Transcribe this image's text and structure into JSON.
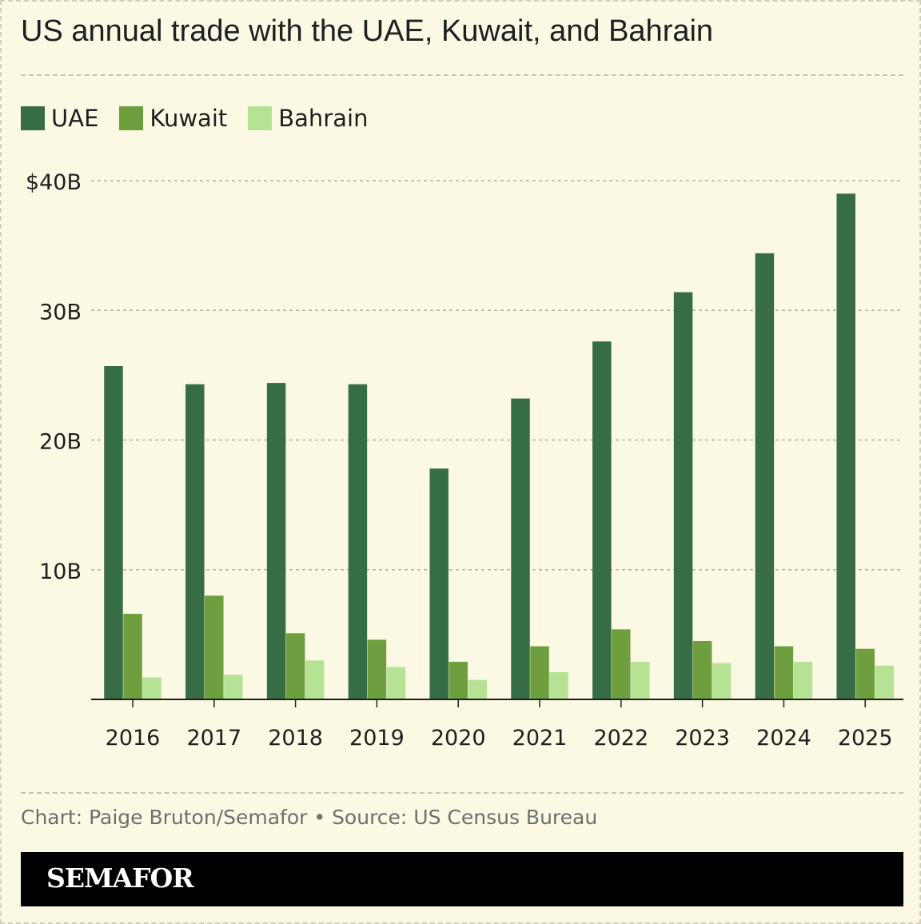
{
  "title": "US annual trade with the UAE, Kuwait, and Bahrain",
  "legend": [
    {
      "label": "UAE",
      "color": "#376d44"
    },
    {
      "label": "Kuwait",
      "color": "#6f9e3e"
    },
    {
      "label": "Bahrain",
      "color": "#b5e393"
    }
  ],
  "footnote": "Chart: Paige Bruton/Semafor • Source: US Census Bureau",
  "brand": "SEMAFOR",
  "chart_data": {
    "type": "bar",
    "title": "US annual trade with the UAE, Kuwait, and Bahrain",
    "xlabel": "",
    "ylabel": "",
    "categories": [
      "2016",
      "2017",
      "2018",
      "2019",
      "2020",
      "2021",
      "2022",
      "2023",
      "2024",
      "2025"
    ],
    "series": [
      {
        "name": "UAE",
        "color": "#376d44",
        "values": [
          25.7,
          24.3,
          24.4,
          24.3,
          17.8,
          23.2,
          27.6,
          31.4,
          34.4,
          39.0
        ]
      },
      {
        "name": "Kuwait",
        "color": "#6f9e3e",
        "values": [
          6.6,
          8.0,
          5.1,
          4.6,
          2.9,
          4.1,
          5.4,
          4.5,
          4.1,
          3.9
        ]
      },
      {
        "name": "Bahrain",
        "color": "#b5e393",
        "values": [
          1.7,
          1.9,
          3.0,
          2.5,
          1.5,
          2.1,
          2.9,
          2.8,
          2.9,
          2.6
        ]
      }
    ],
    "ylim": [
      0,
      40
    ],
    "yticks": [
      10,
      20,
      30,
      40
    ],
    "ytick_labels": [
      "10B",
      "20B",
      "30B",
      "$40B"
    ],
    "grid": true,
    "legend_position": "top-left"
  }
}
